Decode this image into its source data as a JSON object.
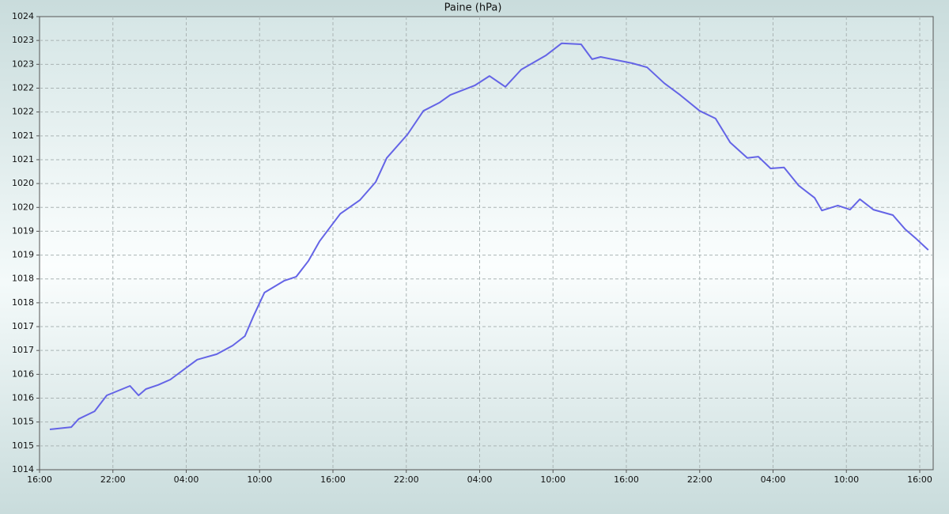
{
  "chart_data": {
    "type": "line",
    "title": "Paine (hPa)",
    "x": [
      0.84,
      2.6,
      3.2,
      4.5,
      5.5,
      7.4,
      8.1,
      8.7,
      9.7,
      10.7,
      12,
      12.9,
      14.5,
      15.8,
      16.8,
      17.5,
      18.4,
      20,
      21,
      22,
      22.9,
      24.6,
      26.2,
      27.5,
      28.4,
      30.1,
      31.4,
      32.7,
      33.6,
      35.6,
      36.8,
      38.1,
      39.4,
      41.4,
      42.7,
      44.3,
      45.2,
      45.9,
      48.5,
      49.7,
      51.1,
      52.4,
      54,
      55.3,
      56.5,
      57.9,
      58.8,
      59.8,
      60.9,
      62.1,
      63.4,
      64,
      65.3,
      66.3,
      67.1,
      68.2,
      69.8,
      70.8,
      71.7,
      72.7
    ],
    "series": [
      {
        "name": "Paine",
        "color": "#6464e6",
        "values": [
          1014.89,
          1014.94,
          1015.12,
          1015.29,
          1015.64,
          1015.85,
          1015.64,
          1015.78,
          1015.87,
          1015.99,
          1016.25,
          1016.43,
          1016.55,
          1016.74,
          1016.95,
          1017.39,
          1017.91,
          1018.17,
          1018.26,
          1018.61,
          1019.04,
          1019.65,
          1019.95,
          1020.35,
          1020.88,
          1021.4,
          1021.92,
          1022.1,
          1022.27,
          1022.48,
          1022.69,
          1022.45,
          1022.83,
          1023.14,
          1023.41,
          1023.39,
          1023.06,
          1023.11,
          1022.97,
          1022.88,
          1022.53,
          1022.27,
          1021.92,
          1021.75,
          1021.22,
          1020.88,
          1020.91,
          1020.65,
          1020.67,
          1020.27,
          1020.0,
          1019.72,
          1019.83,
          1019.74,
          1019.97,
          1019.74,
          1019.62,
          1019.31,
          1019.1,
          1018.85
        ]
      }
    ],
    "xlim": [
      0,
      73.1
    ],
    "xticks": [
      {
        "value": 0,
        "label": "16:00"
      },
      {
        "value": 6,
        "label": "22:00"
      },
      {
        "value": 12,
        "label": "04:00"
      },
      {
        "value": 18,
        "label": "10:00"
      },
      {
        "value": 24,
        "label": "16:00"
      },
      {
        "value": 30,
        "label": "22:00"
      },
      {
        "value": 36,
        "label": "04:00"
      },
      {
        "value": 42,
        "label": "10:00"
      },
      {
        "value": 48,
        "label": "16:00"
      },
      {
        "value": 54,
        "label": "22:00"
      },
      {
        "value": 60,
        "label": "04:00"
      },
      {
        "value": 66,
        "label": "10:00"
      },
      {
        "value": 72,
        "label": "16:00"
      }
    ],
    "ylim": [
      1014,
      1024
    ],
    "yticks": [
      1014,
      {
        "value": 1014.526,
        "label": "1015"
      },
      {
        "value": 1015.053,
        "label": "1015"
      },
      {
        "value": 1015.579,
        "label": "1016"
      },
      {
        "value": 1016.105,
        "label": "1016"
      },
      {
        "value": 1016.632,
        "label": "1017"
      },
      {
        "value": 1017.158,
        "label": "1017"
      },
      {
        "value": 1017.684,
        "label": "1018"
      },
      {
        "value": 1018.211,
        "label": "1018"
      },
      {
        "value": 1018.737,
        "label": "1019"
      },
      {
        "value": 1019.263,
        "label": "1019"
      },
      {
        "value": 1019.789,
        "label": "1020"
      },
      {
        "value": 1020.316,
        "label": "1020"
      },
      {
        "value": 1020.842,
        "label": "1021"
      },
      {
        "value": 1021.368,
        "label": "1021"
      },
      {
        "value": 1021.895,
        "label": "1022"
      },
      {
        "value": 1022.421,
        "label": "1022"
      },
      {
        "value": 1022.947,
        "label": "1023"
      },
      {
        "value": 1023.474,
        "label": "1023"
      },
      1024
    ],
    "grid": true
  }
}
